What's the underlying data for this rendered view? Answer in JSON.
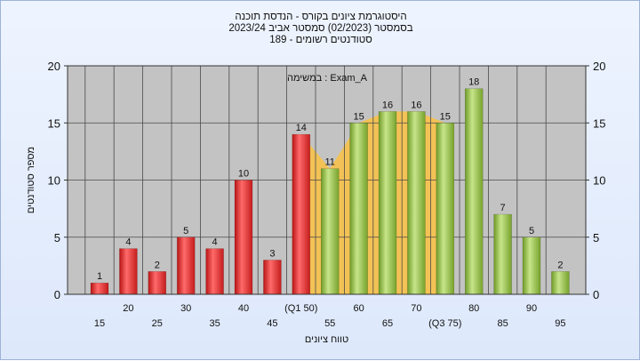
{
  "header": {
    "line1": "היסטוגרמת ציונים בקורס - הנדסת תוכנה",
    "line2": "בסמסטר  (02/2023)  סמסטר אביב 2023/24",
    "line3": "סטודנטים רשומים - 189"
  },
  "chart_data": {
    "type": "bar",
    "annotation": "במשימה : Exam_A",
    "xlabel": "טווח ציונים",
    "ylabel": "מספר סטודנטים",
    "ylim": [
      0,
      20
    ],
    "yticks": [
      0,
      5,
      10,
      15,
      20
    ],
    "categories": [
      "15",
      "20",
      "25",
      "30",
      "35",
      "40",
      "45",
      "50",
      "55",
      "60",
      "65",
      "70",
      "75",
      "80",
      "85",
      "90",
      "95"
    ],
    "tick_labels": [
      "15",
      "20",
      "25",
      "30",
      "35",
      "40",
      "45",
      "(Q1 50)",
      "55",
      "60",
      "65",
      "70",
      "(Q3 75)",
      "80",
      "85",
      "90",
      "95"
    ],
    "values": [
      1,
      4,
      2,
      5,
      4,
      10,
      3,
      14,
      11,
      15,
      16,
      16,
      15,
      18,
      7,
      5,
      2
    ],
    "bar_colors": [
      "red",
      "red",
      "red",
      "red",
      "red",
      "red",
      "red",
      "red",
      "green",
      "green",
      "green",
      "green",
      "green",
      "green",
      "green",
      "green",
      "green"
    ],
    "interquartile_band": {
      "from": "50",
      "to": "75",
      "color": "#f7c24a"
    },
    "grid": true,
    "colors": {
      "red": "#e02a2a",
      "green": "#8fbf3a",
      "plot_bg": "#c3c3c3",
      "band": "#f7c24a"
    }
  }
}
